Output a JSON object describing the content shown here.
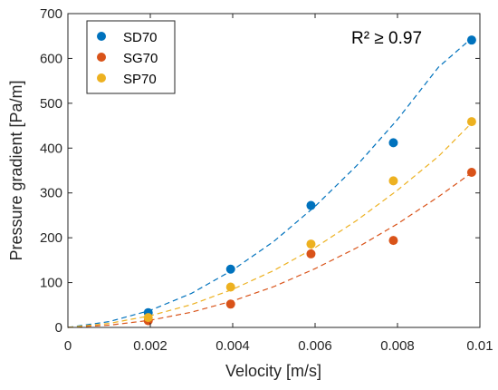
{
  "chart_data": {
    "type": "scatter",
    "xlabel": "Velocity [m/s]",
    "ylabel": "Pressure gradient [Pa/m]",
    "xlim": [
      0,
      0.01
    ],
    "ylim": [
      0,
      700
    ],
    "xticks": [
      0,
      0.002,
      0.004,
      0.006,
      0.008,
      0.01
    ],
    "xtick_labels": [
      "0",
      "0.002",
      "0.004",
      "0.006",
      "0.008",
      "0.01"
    ],
    "yticks": [
      0,
      100,
      200,
      300,
      400,
      500,
      600,
      700
    ],
    "ytick_labels": [
      "0",
      "100",
      "200",
      "300",
      "400",
      "500",
      "600",
      "700"
    ],
    "grid": false,
    "legend_position": "top-left",
    "annotation": "R² ≥ 0.97",
    "series": [
      {
        "name": "SD70",
        "color": "#0072BD",
        "points": [
          [
            0.00195,
            33
          ],
          [
            0.00395,
            130
          ],
          [
            0.0059,
            272
          ],
          [
            0.0079,
            412
          ],
          [
            0.0098,
            641
          ]
        ],
        "fit": [
          [
            0,
            0
          ],
          [
            0.001,
            13
          ],
          [
            0.002,
            38
          ],
          [
            0.003,
            76
          ],
          [
            0.004,
            128
          ],
          [
            0.005,
            192
          ],
          [
            0.006,
            270
          ],
          [
            0.007,
            360
          ],
          [
            0.008,
            464
          ],
          [
            0.009,
            581
          ],
          [
            0.0098,
            645
          ]
        ]
      },
      {
        "name": "SG70",
        "color": "#D95319",
        "points": [
          [
            0.00195,
            15
          ],
          [
            0.00395,
            52
          ],
          [
            0.0059,
            164
          ],
          [
            0.0079,
            194
          ],
          [
            0.0098,
            346
          ]
        ],
        "fit": [
          [
            0,
            0
          ],
          [
            0.001,
            5
          ],
          [
            0.002,
            16
          ],
          [
            0.003,
            34
          ],
          [
            0.004,
            59
          ],
          [
            0.005,
            91
          ],
          [
            0.006,
            131
          ],
          [
            0.007,
            177
          ],
          [
            0.008,
            231
          ],
          [
            0.009,
            292
          ],
          [
            0.0098,
            345
          ]
        ]
      },
      {
        "name": "SP70",
        "color": "#EDB120",
        "points": [
          [
            0.00195,
            22
          ],
          [
            0.00395,
            90
          ],
          [
            0.0059,
            186
          ],
          [
            0.0079,
            327
          ],
          [
            0.0098,
            459
          ]
        ],
        "fit": [
          [
            0,
            0
          ],
          [
            0.001,
            9
          ],
          [
            0.002,
            26
          ],
          [
            0.003,
            51
          ],
          [
            0.004,
            85
          ],
          [
            0.005,
            127
          ],
          [
            0.006,
            178
          ],
          [
            0.007,
            238
          ],
          [
            0.008,
            306
          ],
          [
            0.009,
            382
          ],
          [
            0.0098,
            456
          ]
        ]
      }
    ]
  }
}
